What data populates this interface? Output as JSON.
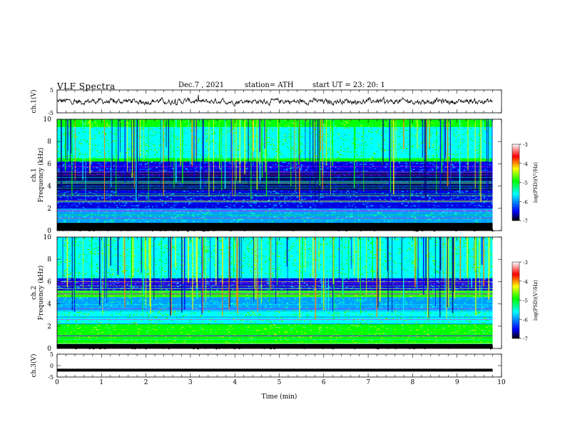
{
  "header": {
    "title": "VLF  Spectra",
    "date": "Dec.7  , 2021",
    "station": "station= ATH",
    "start_ut": "start  UT  =    23: 20: 1"
  },
  "chart_data": [
    {
      "type": "line",
      "panel": "ch1-waveform",
      "ylabel": "ch.1(V)",
      "ylim": [
        -5,
        5
      ],
      "yticks": [
        "5",
        "-5"
      ],
      "xlim": [
        0,
        10
      ],
      "trace_level_v": 0,
      "trace_amplitude_v": 1.3,
      "color": "#000000"
    },
    {
      "type": "heatmap",
      "panel": "ch1-spectrogram",
      "ylabel_line1": "ch.1",
      "ylabel_line2": "Frequency  (kHz)",
      "ylim": [
        0,
        10
      ],
      "yticks": [
        "0",
        "2",
        "4",
        "6",
        "8",
        "10"
      ],
      "xlim": [
        0,
        10
      ],
      "data_end_min": 9.8,
      "colorscale": [
        "#000000",
        "#0000ff",
        "#00ffff",
        "#00ff00",
        "#ffff00",
        "#ff0000",
        "#ffffff"
      ],
      "colorbar": {
        "label": "log(PSD)(V²/Hz)",
        "ticks": [
          "-3",
          "-4",
          "-5",
          "-6",
          "-7"
        ],
        "range": [
          -7,
          -3
        ]
      },
      "bands_khz": [
        {
          "from": 9.3,
          "to": 10.0,
          "level": "green"
        },
        {
          "from": 6.5,
          "to": 9.3,
          "level": "cyan-green"
        },
        {
          "from": 6.2,
          "to": 6.5,
          "level": "green"
        },
        {
          "from": 5.3,
          "to": 6.2,
          "level": "blue"
        },
        {
          "from": 3.6,
          "to": 5.3,
          "level": "dark-blue"
        },
        {
          "from": 2.0,
          "to": 3.6,
          "level": "blue"
        },
        {
          "from": 0.7,
          "to": 2.0,
          "level": "cyan"
        },
        {
          "from": 0.0,
          "to": 0.7,
          "level": "black"
        }
      ]
    },
    {
      "type": "heatmap",
      "panel": "ch2-spectrogram",
      "ylabel_line1": "ch.2",
      "ylabel_line2": "Frequency  (kHz)",
      "ylim": [
        0,
        10
      ],
      "yticks": [
        "0",
        "2",
        "4",
        "6",
        "8",
        "10"
      ],
      "xlim": [
        0,
        10
      ],
      "data_end_min": 9.8,
      "colorscale": [
        "#000000",
        "#0000ff",
        "#00ffff",
        "#00ff00",
        "#ffff00",
        "#ff0000",
        "#ffffff"
      ],
      "colorbar": {
        "label": "log(PSD)(V²/Hz)",
        "ticks": [
          "-3",
          "-4",
          "-5",
          "-6",
          "-7"
        ],
        "range": [
          -7,
          -3
        ]
      },
      "bands_khz": [
        {
          "from": 6.3,
          "to": 10.0,
          "level": "cyan-green"
        },
        {
          "from": 5.2,
          "to": 6.3,
          "level": "blue"
        },
        {
          "from": 4.6,
          "to": 5.2,
          "level": "green"
        },
        {
          "from": 3.5,
          "to": 4.6,
          "level": "cyan"
        },
        {
          "from": 2.2,
          "to": 3.5,
          "level": "cyan-green"
        },
        {
          "from": 0.4,
          "to": 2.2,
          "level": "green"
        },
        {
          "from": 0.0,
          "to": 0.4,
          "level": "black"
        }
      ]
    },
    {
      "type": "line",
      "panel": "ch3-waveform",
      "ylabel": "ch.3(V)",
      "ylim": [
        -5,
        5
      ],
      "yticks": [
        "5",
        "0",
        "-5"
      ],
      "xlim": [
        0,
        10
      ],
      "xlabel": "Time  (min)",
      "xticks": [
        "0",
        "1",
        "2",
        "3",
        "4",
        "5",
        "6",
        "7",
        "8",
        "9",
        "10"
      ],
      "trace_level_v": -2,
      "color": "#000000"
    }
  ]
}
